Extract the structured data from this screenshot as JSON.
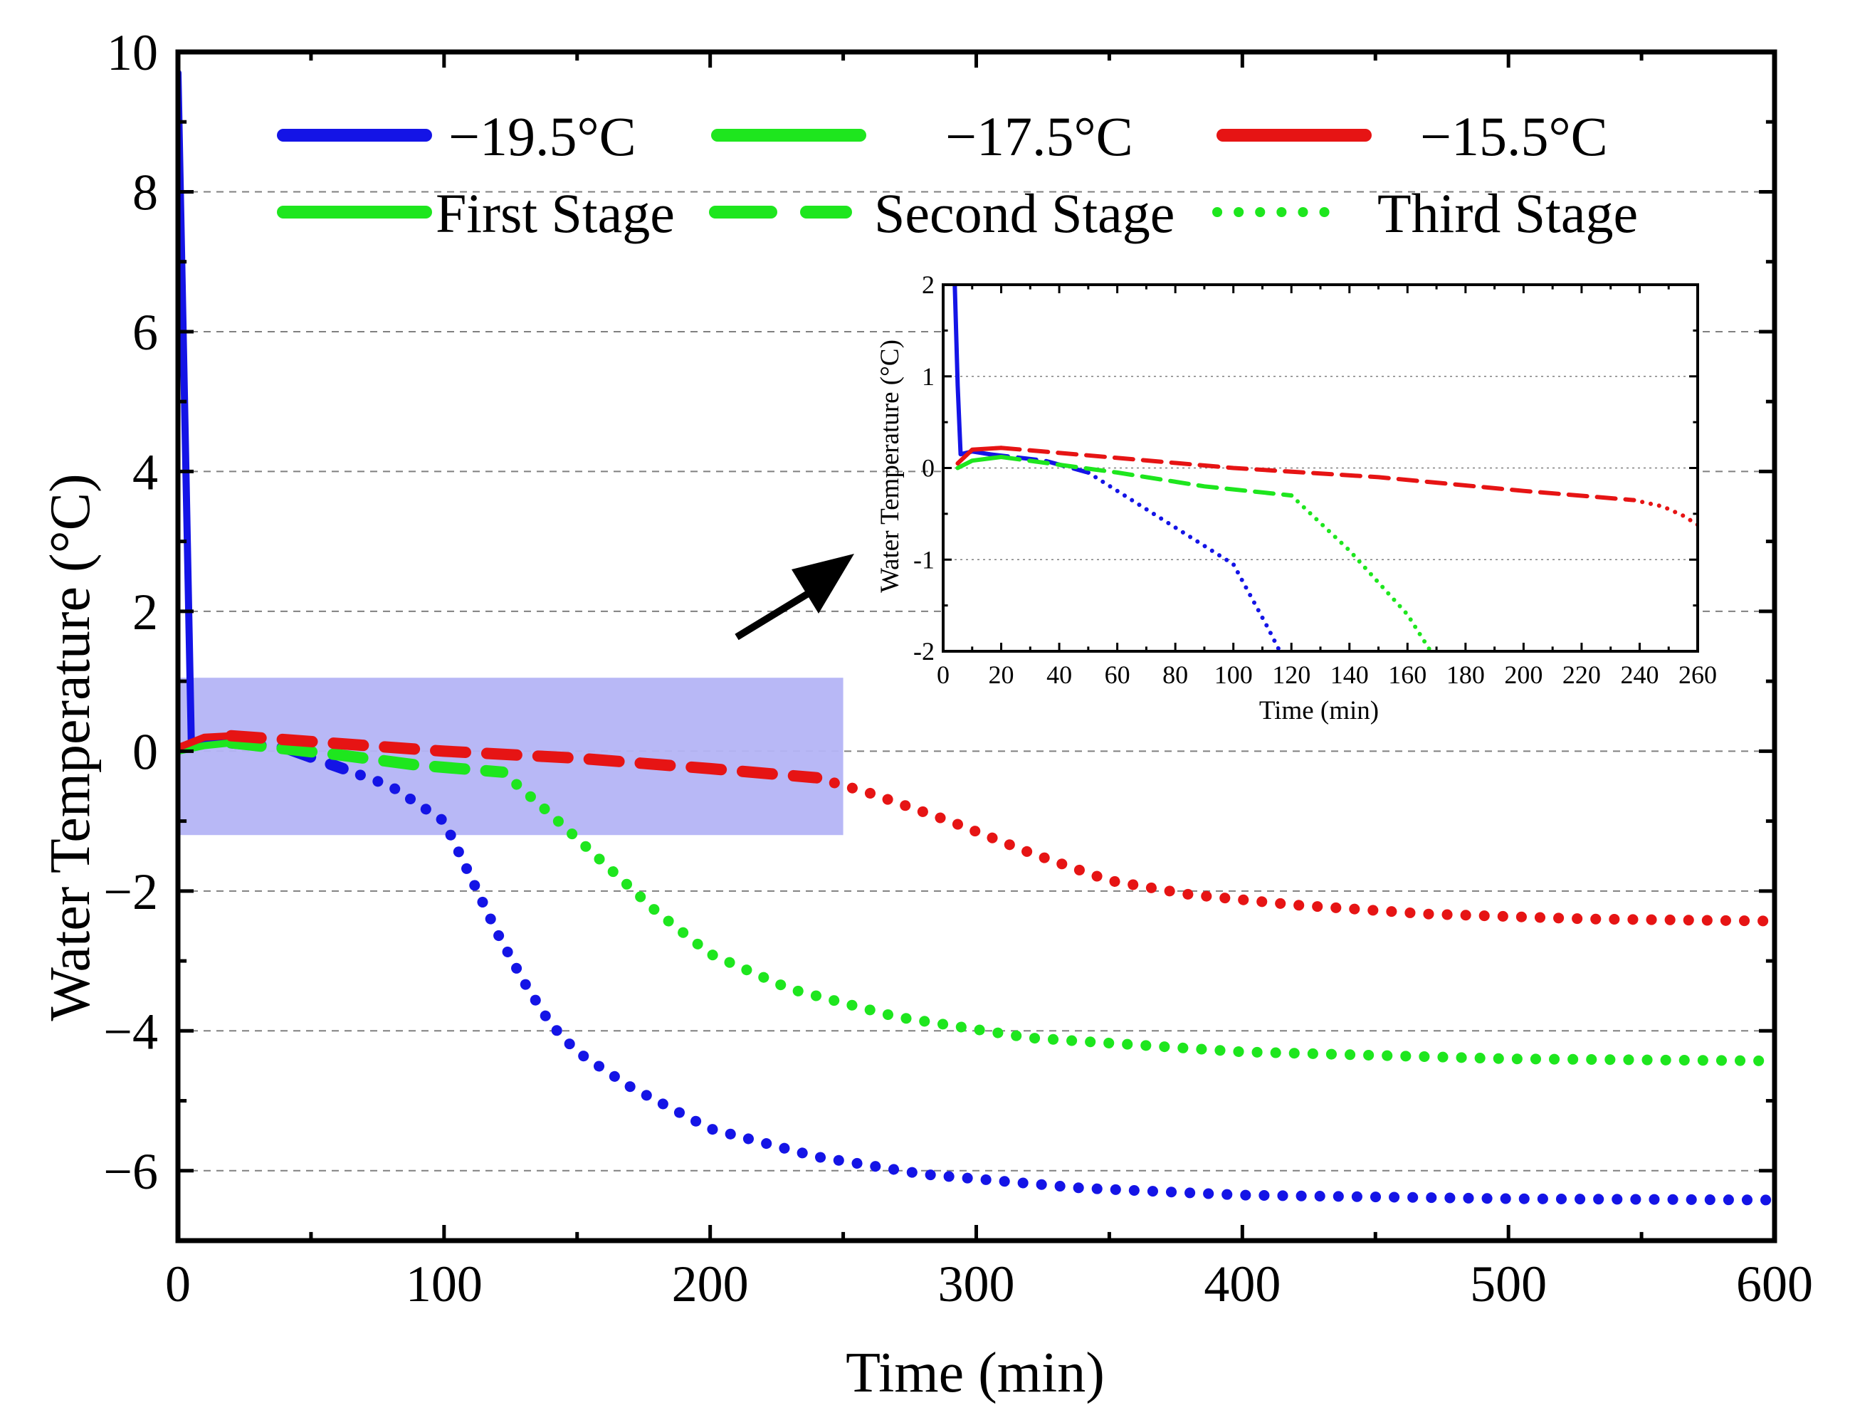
{
  "chart_data": [
    {
      "id": "main",
      "type": "line",
      "title": "",
      "xlabel": "Time (min)",
      "ylabel": "Water Temperature (°C)",
      "xlim": [
        0,
        600
      ],
      "ylim": [
        -7,
        10
      ],
      "xticks": [
        0,
        100,
        200,
        300,
        400,
        500,
        600
      ],
      "yticks": [
        10,
        8,
        6,
        4,
        2,
        0,
        -2,
        -4,
        -6
      ],
      "xtick_labels": [
        "0",
        "100",
        "200",
        "300",
        "400",
        "500",
        "600"
      ],
      "ytick_labels": [
        "10",
        "8",
        "6",
        "4",
        "2",
        "0",
        "−2",
        "−4",
        "−6"
      ],
      "grid": "horizontal dashed",
      "highlight_region": {
        "x": [
          0,
          250
        ],
        "y": [
          -1.2,
          1.05
        ],
        "color": "#b4b4f5"
      },
      "legend": {
        "position": "top",
        "temperatures": [
          {
            "label": "−19.5°C",
            "color": "#1414e6"
          },
          {
            "label": "−17.5°C",
            "color": "#1ee61e"
          },
          {
            "label": "−15.5°C",
            "color": "#e61414"
          }
        ],
        "stages": [
          {
            "label": "First Stage",
            "style": "solid",
            "color": "#1ee61e"
          },
          {
            "label": "Second Stage",
            "style": "dashed",
            "color": "#1ee61e"
          },
          {
            "label": "Third Stage",
            "style": "dotted",
            "color": "#1ee61e"
          }
        ]
      },
      "series": [
        {
          "name": "−19.5°C",
          "color": "#1414e6",
          "first_stage": [
            [
              0,
              9.7
            ],
            [
              3,
              4.0
            ],
            [
              5,
              0.15
            ],
            [
              10,
              0.15
            ],
            [
              20,
              0.12
            ]
          ],
          "second_stage": [
            [
              20,
              0.12
            ],
            [
              40,
              0.05
            ],
            [
              62,
              -0.25
            ]
          ],
          "third_stage": [
            [
              62,
              -0.25
            ],
            [
              80,
              -0.5
            ],
            [
              100,
              -1.0
            ],
            [
              110,
              -1.8
            ],
            [
              120,
              -2.6
            ],
            [
              130,
              -3.3
            ],
            [
              140,
              -3.9
            ],
            [
              150,
              -4.3
            ],
            [
              170,
              -4.8
            ],
            [
              200,
              -5.4
            ],
            [
              240,
              -5.8
            ],
            [
              280,
              -6.05
            ],
            [
              340,
              -6.25
            ],
            [
              400,
              -6.35
            ],
            [
              500,
              -6.4
            ],
            [
              600,
              -6.42
            ]
          ]
        },
        {
          "name": "−17.5°C",
          "color": "#1ee61e",
          "first_stage": [
            [
              0,
              0.0
            ],
            [
              10,
              0.08
            ],
            [
              20,
              0.12
            ]
          ],
          "second_stage": [
            [
              20,
              0.12
            ],
            [
              60,
              -0.05
            ],
            [
              90,
              -0.2
            ],
            [
              122,
              -0.3
            ]
          ],
          "third_stage": [
            [
              122,
              -0.3
            ],
            [
              140,
              -0.9
            ],
            [
              160,
              -1.6
            ],
            [
              180,
              -2.3
            ],
            [
              200,
              -2.9
            ],
            [
              230,
              -3.4
            ],
            [
              270,
              -3.8
            ],
            [
              320,
              -4.1
            ],
            [
              400,
              -4.3
            ],
            [
              500,
              -4.4
            ],
            [
              600,
              -4.43
            ]
          ]
        },
        {
          "name": "−15.5°C",
          "color": "#e61414",
          "first_stage": [
            [
              0,
              0.05
            ],
            [
              10,
              0.2
            ],
            [
              20,
              0.22
            ]
          ],
          "second_stage": [
            [
              20,
              0.22
            ],
            [
              100,
              0.0
            ],
            [
              150,
              -0.1
            ],
            [
              200,
              -0.25
            ],
            [
              240,
              -0.38
            ]
          ],
          "third_stage": [
            [
              240,
              -0.38
            ],
            [
              260,
              -0.6
            ],
            [
              290,
              -1.0
            ],
            [
              320,
              -1.45
            ],
            [
              350,
              -1.85
            ],
            [
              380,
              -2.05
            ],
            [
              420,
              -2.2
            ],
            [
              470,
              -2.33
            ],
            [
              530,
              -2.4
            ],
            [
              600,
              -2.43
            ]
          ]
        }
      ]
    },
    {
      "id": "inset",
      "type": "line",
      "xlabel": "Time (min)",
      "ylabel": "Water Temperature (°C)",
      "xlim": [
        0,
        260
      ],
      "ylim": [
        -2,
        2
      ],
      "xticks": [
        0,
        20,
        40,
        60,
        80,
        100,
        120,
        140,
        160,
        180,
        200,
        220,
        240,
        260
      ],
      "yticks": [
        2,
        1,
        0,
        -1,
        -2
      ],
      "xtick_labels": [
        "0",
        "20",
        "40",
        "60",
        "80",
        "100",
        "120",
        "140",
        "160",
        "180",
        "200",
        "220",
        "240",
        "260"
      ],
      "ytick_labels": [
        "2",
        "1",
        "0",
        "-1",
        "-2"
      ],
      "grid": "horizontal dotted",
      "series": [
        {
          "name": "−19.5°C",
          "color": "#1414e6",
          "first_stage": [
            [
              4,
              2.0
            ],
            [
              5,
              0.9
            ],
            [
              6,
              0.15
            ],
            [
              10,
              0.18
            ],
            [
              16,
              0.15
            ]
          ],
          "second_stage": [
            [
              16,
              0.15
            ],
            [
              35,
              0.08
            ],
            [
              50,
              -0.05
            ]
          ],
          "third_stage": [
            [
              50,
              -0.05
            ],
            [
              60,
              -0.25
            ],
            [
              75,
              -0.55
            ],
            [
              90,
              -0.85
            ],
            [
              100,
              -1.05
            ],
            [
              106,
              -1.4
            ],
            [
              112,
              -1.75
            ],
            [
              116,
              -2.0
            ]
          ]
        },
        {
          "name": "−17.5°C",
          "color": "#1ee61e",
          "first_stage": [
            [
              5,
              0.0
            ],
            [
              10,
              0.08
            ],
            [
              20,
              0.12
            ]
          ],
          "second_stage": [
            [
              20,
              0.12
            ],
            [
              60,
              -0.05
            ],
            [
              90,
              -0.2
            ],
            [
              120,
              -0.3
            ]
          ],
          "third_stage": [
            [
              120,
              -0.3
            ],
            [
              130,
              -0.6
            ],
            [
              140,
              -0.9
            ],
            [
              150,
              -1.25
            ],
            [
              160,
              -1.6
            ],
            [
              168,
              -2.0
            ]
          ]
        },
        {
          "name": "−15.5°C",
          "color": "#e61414",
          "first_stage": [
            [
              5,
              0.05
            ],
            [
              10,
              0.2
            ],
            [
              20,
              0.22
            ]
          ],
          "second_stage": [
            [
              20,
              0.22
            ],
            [
              100,
              0.0
            ],
            [
              150,
              -0.1
            ],
            [
              200,
              -0.25
            ],
            [
              238,
              -0.35
            ]
          ],
          "third_stage": [
            [
              238,
              -0.35
            ],
            [
              248,
              -0.42
            ],
            [
              255,
              -0.52
            ],
            [
              260,
              -0.62
            ]
          ]
        }
      ]
    }
  ]
}
